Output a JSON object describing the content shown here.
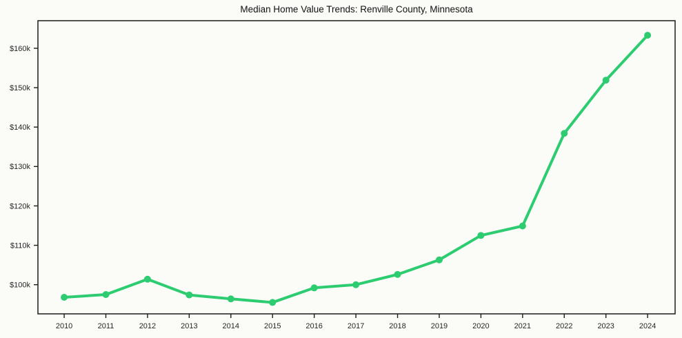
{
  "page": {
    "background_color": "#fbfbf8"
  },
  "chart_data": {
    "type": "line",
    "title": "Median Home Value Trends: Renville County, Minnesota",
    "series": [
      {
        "name": "Median Home Value",
        "x": [
          2010,
          2011,
          2012,
          2013,
          2014,
          2015,
          2016,
          2017,
          2018,
          2019,
          2020,
          2021,
          2022,
          2023,
          2024
        ],
        "values": [
          96800,
          97500,
          101400,
          97400,
          96400,
          95500,
          99200,
          100000,
          102600,
          106300,
          112500,
          114900,
          138400,
          151900,
          163300
        ]
      }
    ],
    "xlabel": "",
    "ylabel": "",
    "xlim": [
      2009.37,
      2024.66
    ],
    "ylim": [
      92600,
      167000
    ],
    "yticks": [
      100000,
      110000,
      120000,
      130000,
      140000,
      150000,
      160000
    ],
    "ytick_labels": [
      "$100k",
      "$110k",
      "$120k",
      "$130k",
      "$140k",
      "$150k",
      "$160k"
    ],
    "xticks": [
      2010,
      2011,
      2012,
      2013,
      2014,
      2015,
      2016,
      2017,
      2018,
      2019,
      2020,
      2021,
      2022,
      2023,
      2024
    ],
    "xtick_labels": [
      "2010",
      "2011",
      "2012",
      "2013",
      "2014",
      "2015",
      "2016",
      "2017",
      "2018",
      "2019",
      "2020",
      "2021",
      "2022",
      "2023",
      "2024"
    ],
    "grid": false,
    "legend_position": "none",
    "line_color": "#2ecc71",
    "marker": "circle",
    "marker_color": "#2ecc71",
    "spine_color": "#1a1a1a",
    "tick_label_color": "#262626"
  }
}
